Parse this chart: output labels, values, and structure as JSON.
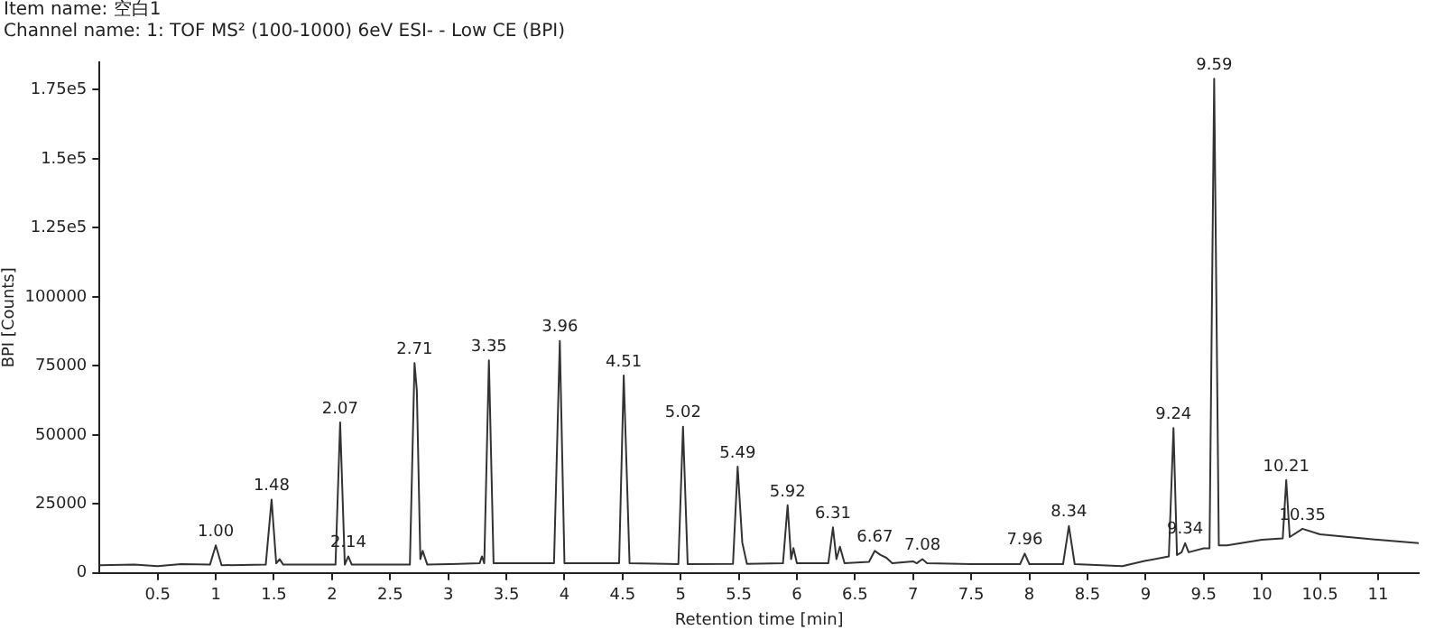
{
  "chart_data": {
    "type": "line",
    "title": "Item name: 空白1",
    "subtitle": "Channel name: 1: TOF MS² (100-1000) 6eV ESI- - Low CE (BPI)",
    "xlabel": "Retention time [min]",
    "ylabel": "BPI [Counts]",
    "xlim": [
      0,
      11.35
    ],
    "xticks": [
      0.5,
      1,
      1.5,
      2,
      2.5,
      3,
      3.5,
      4,
      4.5,
      5,
      5.5,
      6,
      6.5,
      7,
      7.5,
      8,
      8.5,
      9,
      9.5,
      10,
      10.5,
      11
    ],
    "ylim": [
      0,
      185000
    ],
    "yticks": [
      0,
      25000,
      50000,
      75000,
      100000,
      {
        "value": 125000,
        "label": "1.25e5"
      },
      {
        "value": 150000,
        "label": "1.5e5"
      },
      {
        "value": 175000,
        "label": "1.75e5"
      }
    ],
    "grid": false,
    "legend": false,
    "marker": "none",
    "line_style": "solid",
    "series": [
      {
        "color": "#333333",
        "x": [
          0,
          0.3,
          0.5,
          0.7,
          0.95,
          1.0,
          1.05,
          1.43,
          1.48,
          1.52,
          1.55,
          1.58,
          2.03,
          2.07,
          2.11,
          2.14,
          2.17,
          2.67,
          2.71,
          2.73,
          2.76,
          2.78,
          2.82,
          3.27,
          3.29,
          3.31,
          3.35,
          3.39,
          3.91,
          3.96,
          4.0,
          4.47,
          4.51,
          4.56,
          4.98,
          5.02,
          5.06,
          5.45,
          5.49,
          5.53,
          5.57,
          5.88,
          5.92,
          5.95,
          5.97,
          6.0,
          6.27,
          6.31,
          6.34,
          6.37,
          6.41,
          6.62,
          6.67,
          6.72,
          6.77,
          6.82,
          7.0,
          7.03,
          7.08,
          7.12,
          7.5,
          7.92,
          7.96,
          8.0,
          8.29,
          8.34,
          8.39,
          8.8,
          9.0,
          9.2,
          9.24,
          9.27,
          9.31,
          9.34,
          9.37,
          9.5,
          9.55,
          9.59,
          9.63,
          9.7,
          10.0,
          10.18,
          10.21,
          10.24,
          10.35,
          10.5,
          11.0,
          11.35
        ],
        "values": [
          2800,
          3000,
          2500,
          3200,
          3000,
          10000,
          2800,
          3000,
          26600,
          3500,
          5000,
          3000,
          3000,
          54500,
          3000,
          6000,
          3000,
          3000,
          76000,
          66000,
          5000,
          8000,
          3000,
          3500,
          6000,
          3500,
          77000,
          3500,
          3500,
          84000,
          3500,
          3500,
          71500,
          3500,
          3200,
          53000,
          3200,
          3300,
          38500,
          11000,
          3300,
          3500,
          24500,
          5000,
          9000,
          3500,
          3500,
          16500,
          5000,
          9500,
          3500,
          4000,
          8000,
          6500,
          5500,
          3500,
          4200,
          3500,
          5000,
          3500,
          3200,
          3200,
          7000,
          3200,
          3200,
          17000,
          3200,
          2500,
          4400,
          6000,
          52500,
          6500,
          7500,
          10800,
          7500,
          8900,
          8900,
          179000,
          10000,
          10000,
          12000,
          12500,
          33600,
          13000,
          16000,
          14000,
          12000,
          10800
        ]
      }
    ],
    "annotations": [
      {
        "text": "1.00",
        "x": 1.0,
        "y": 10000
      },
      {
        "text": "1.48",
        "x": 1.48,
        "y": 26600
      },
      {
        "text": "2.07",
        "x": 2.07,
        "y": 54500
      },
      {
        "text": "2.14",
        "x": 2.14,
        "y": 6000
      },
      {
        "text": "2.71",
        "x": 2.71,
        "y": 76000
      },
      {
        "text": "3.35",
        "x": 3.35,
        "y": 77000
      },
      {
        "text": "3.96",
        "x": 3.96,
        "y": 84000
      },
      {
        "text": "4.51",
        "x": 4.51,
        "y": 71500
      },
      {
        "text": "5.02",
        "x": 5.02,
        "y": 53000
      },
      {
        "text": "5.49",
        "x": 5.49,
        "y": 38500
      },
      {
        "text": "5.92",
        "x": 5.92,
        "y": 24500
      },
      {
        "text": "6.31",
        "x": 6.31,
        "y": 16500
      },
      {
        "text": "6.67",
        "x": 6.67,
        "y": 8000
      },
      {
        "text": "7.08",
        "x": 7.08,
        "y": 5000
      },
      {
        "text": "7.96",
        "x": 7.96,
        "y": 7000
      },
      {
        "text": "8.34",
        "x": 8.34,
        "y": 17000
      },
      {
        "text": "9.24",
        "x": 9.24,
        "y": 52500
      },
      {
        "text": "9.34",
        "x": 9.34,
        "y": 10800
      },
      {
        "text": "9.59",
        "x": 9.59,
        "y": 179000
      },
      {
        "text": "10.21",
        "x": 10.21,
        "y": 33600
      },
      {
        "text": "10.35",
        "x": 10.35,
        "y": 16000
      }
    ]
  }
}
